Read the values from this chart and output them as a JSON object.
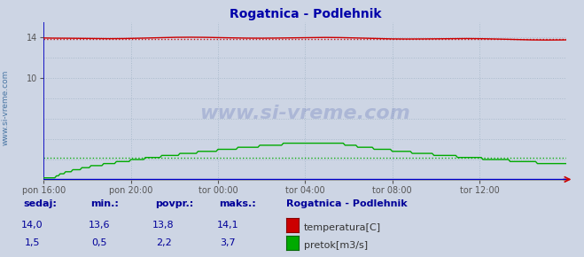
{
  "title": "Rogatnica - Podlehnik",
  "bg_color": "#cdd5e4",
  "plot_bg_color": "#cdd5e4",
  "xlim": [
    0,
    288
  ],
  "ylim": [
    0,
    15.5
  ],
  "x_tick_labels": [
    "pon 16:00",
    "pon 20:00",
    "tor 00:00",
    "tor 04:00",
    "tor 08:00",
    "tor 12:00"
  ],
  "x_tick_positions": [
    0,
    48,
    96,
    144,
    192,
    240
  ],
  "y_tick_positions": [
    10,
    14
  ],
  "y_tick_labels": [
    "10",
    "14"
  ],
  "grid_h_positions": [
    2,
    4,
    6,
    8,
    10,
    12,
    14
  ],
  "grid_v_positions": [
    0,
    48,
    96,
    144,
    192,
    240,
    288
  ],
  "temp_color": "#cc0000",
  "flow_color": "#00aa00",
  "height_color": "#0000cc",
  "grid_color": "#aabbcc",
  "watermark": "www.si-vreme.com",
  "temp_min": 13.6,
  "temp_max": 14.1,
  "temp_avg": 13.8,
  "temp_cur": 14.0,
  "flow_min": 0.5,
  "flow_max": 3.7,
  "flow_avg": 2.2,
  "flow_cur": 1.5,
  "label_sedaj": "sedaj:",
  "label_min": "min.:",
  "label_povpr": "povpr.:",
  "label_maks": "maks.:",
  "legend_title": "Rogatnica - Podlehnik",
  "legend_temp": "temperatura[C]",
  "legend_flow": "pretok[m3/s]",
  "table_color": "#000099",
  "left_label": "www.si-vreme.com"
}
